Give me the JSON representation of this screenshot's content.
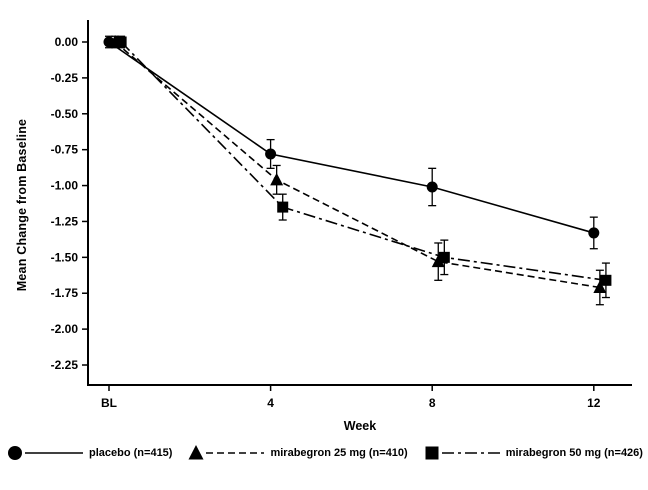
{
  "figure": {
    "background": "#ffffff",
    "ink": "#000000"
  },
  "chart_data": {
    "type": "line",
    "title": "",
    "xlabel": "Week",
    "ylabel": "Mean Change from Baseline",
    "x_categories": [
      "BL",
      "4",
      "8",
      "12"
    ],
    "xticks": [
      {
        "label": "BL",
        "week": 0
      },
      {
        "label": "4",
        "week": 4
      },
      {
        "label": "8",
        "week": 8
      },
      {
        "label": "12",
        "week": 12
      }
    ],
    "yticks": [
      {
        "label": "0.00",
        "value": 0.0
      },
      {
        "label": "-0.25",
        "value": -0.25
      },
      {
        "label": "-0.50",
        "value": -0.5
      },
      {
        "label": "-0.75",
        "value": -0.75
      },
      {
        "label": "-1.00",
        "value": -1.0
      },
      {
        "label": "-1.25",
        "value": -1.25
      },
      {
        "label": "-1.50",
        "value": -1.5
      },
      {
        "label": "-1.75",
        "value": -1.75
      },
      {
        "label": "-2.00",
        "value": -2.0
      },
      {
        "label": "-2.25",
        "value": -2.25
      }
    ],
    "ylim": [
      -2.35,
      0.15
    ],
    "grid": false,
    "legend_position": "bottom",
    "series": [
      {
        "name": "placebo (n=415)",
        "marker": "circle",
        "line_style": "solid",
        "x_offset_weeks": 0,
        "points": [
          {
            "week": 0,
            "value": 0.0,
            "err": 0.04
          },
          {
            "week": 4,
            "value": -0.78,
            "err": 0.1
          },
          {
            "week": 8,
            "value": -1.01,
            "err": 0.13
          },
          {
            "week": 12,
            "value": -1.33,
            "err": 0.11
          }
        ]
      },
      {
        "name": "mirabegron 25 mg (n=410)",
        "marker": "triangle",
        "line_style": "dashed",
        "x_offset_weeks": 0.15,
        "points": [
          {
            "week": 0,
            "value": 0.0,
            "err": 0.04
          },
          {
            "week": 4,
            "value": -0.96,
            "err": 0.1
          },
          {
            "week": 8,
            "value": -1.53,
            "err": 0.13
          },
          {
            "week": 12,
            "value": -1.71,
            "err": 0.12
          }
        ]
      },
      {
        "name": "mirabegron 50 mg (n=426)",
        "marker": "square",
        "line_style": "dashdot",
        "x_offset_weeks": 0.3,
        "points": [
          {
            "week": 0,
            "value": 0.0,
            "err": 0.04
          },
          {
            "week": 4,
            "value": -1.15,
            "err": 0.09
          },
          {
            "week": 8,
            "value": -1.5,
            "err": 0.12
          },
          {
            "week": 12,
            "value": -1.66,
            "err": 0.12
          }
        ]
      }
    ]
  }
}
